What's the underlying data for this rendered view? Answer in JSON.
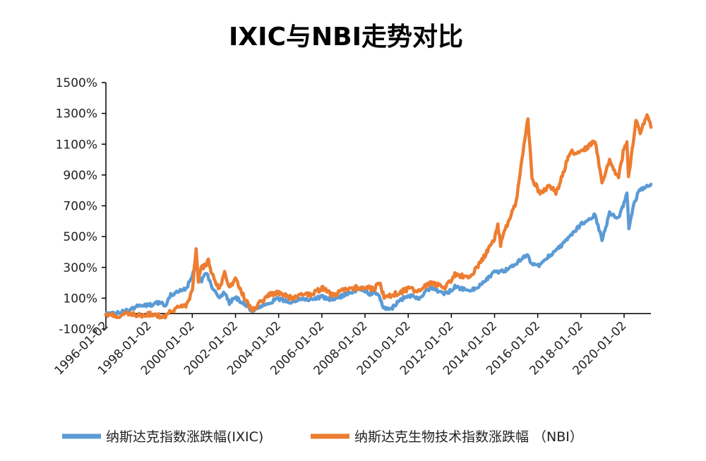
{
  "chart_data": {
    "type": "line",
    "title": "IXIC与NBI走势对比",
    "xlabel": "",
    "ylabel": "",
    "ylim": [
      -100,
      1500
    ],
    "yticks": [
      "-100%",
      "100%",
      "300%",
      "500%",
      "700%",
      "900%",
      "1100%",
      "1300%",
      "1500%"
    ],
    "yticks_values": [
      -100,
      100,
      300,
      500,
      700,
      900,
      1100,
      1300,
      1500
    ],
    "xlim": [
      "1996-01-02",
      "2021-03-31"
    ],
    "xticks": [
      "1996-01-02",
      "1998-01-02",
      "2000-01-02",
      "2002-01-02",
      "2004-01-02",
      "2006-01-02",
      "2008-01-02",
      "2010-01-02",
      "2012-01-02",
      "2014-01-02",
      "2016-01-02",
      "2018-01-02",
      "2020-01-02"
    ],
    "grid": false,
    "legend_position": "bottom",
    "series": [
      {
        "name": "纳斯达克指数涨跌幅(IXIC)",
        "color": "#5B9BD5",
        "points": [
          [
            "1996-01-02",
            0
          ],
          [
            "1996-07-01",
            2
          ],
          [
            "1997-01-02",
            20
          ],
          [
            "1997-07-01",
            50
          ],
          [
            "1998-01-02",
            55
          ],
          [
            "1998-07-01",
            75
          ],
          [
            "1998-10-05",
            45
          ],
          [
            "1999-01-04",
            120
          ],
          [
            "1999-07-01",
            150
          ],
          [
            "1999-10-01",
            170
          ],
          [
            "2000-01-03",
            250
          ],
          [
            "2000-03-10",
            310
          ],
          [
            "2000-05-23",
            200
          ],
          [
            "2000-09-01",
            270
          ],
          [
            "2000-12-01",
            170
          ],
          [
            "2001-04-04",
            105
          ],
          [
            "2001-07-02",
            140
          ],
          [
            "2001-09-21",
            70
          ],
          [
            "2002-01-02",
            105
          ],
          [
            "2002-07-01",
            55
          ],
          [
            "2002-10-09",
            15
          ],
          [
            "2003-01-02",
            35
          ],
          [
            "2003-07-01",
            70
          ],
          [
            "2004-01-02",
            95
          ],
          [
            "2004-08-02",
            75
          ],
          [
            "2005-01-03",
            95
          ],
          [
            "2005-07-01",
            90
          ],
          [
            "2006-01-03",
            110
          ],
          [
            "2006-07-17",
            85
          ],
          [
            "2007-01-02",
            120
          ],
          [
            "2007-10-31",
            165
          ],
          [
            "2008-03-10",
            125
          ],
          [
            "2008-06-02",
            140
          ],
          [
            "2008-09-01",
            110
          ],
          [
            "2008-11-20",
            35
          ],
          [
            "2009-03-09",
            20
          ],
          [
            "2009-07-01",
            75
          ],
          [
            "2010-01-04",
            120
          ],
          [
            "2010-07-01",
            95
          ],
          [
            "2011-01-03",
            165
          ],
          [
            "2011-10-03",
            125
          ],
          [
            "2012-03-01",
            175
          ],
          [
            "2012-11-15",
            145
          ],
          [
            "2013-06-01",
            195
          ],
          [
            "2014-01-02",
            270
          ],
          [
            "2014-07-01",
            280
          ],
          [
            "2015-01-02",
            330
          ],
          [
            "2015-07-20",
            385
          ],
          [
            "2015-08-25",
            330
          ],
          [
            "2016-02-11",
            310
          ],
          [
            "2016-07-01",
            370
          ],
          [
            "2017-01-03",
            430
          ],
          [
            "2017-07-03",
            500
          ],
          [
            "2018-01-02",
            580
          ],
          [
            "2018-08-29",
            640
          ],
          [
            "2018-12-24",
            480
          ],
          [
            "2019-05-01",
            650
          ],
          [
            "2019-10-01",
            620
          ],
          [
            "2020-01-02",
            720
          ],
          [
            "2020-02-19",
            790
          ],
          [
            "2020-03-23",
            560
          ],
          [
            "2020-06-01",
            690
          ],
          [
            "2020-09-01",
            790
          ],
          [
            "2021-01-04",
            830
          ],
          [
            "2021-03-31",
            840
          ]
        ]
      },
      {
        "name": "纳斯达克生物技术指数涨跌幅 （NBI）",
        "color": "#ED7D31",
        "points": [
          [
            "1996-01-02",
            0
          ],
          [
            "1996-07-01",
            -15
          ],
          [
            "1997-01-02",
            -5
          ],
          [
            "1997-07-01",
            -10
          ],
          [
            "1998-01-02",
            -5
          ],
          [
            "1998-10-05",
            -25
          ],
          [
            "1999-01-04",
            20
          ],
          [
            "1999-07-01",
            40
          ],
          [
            "1999-10-01",
            60
          ],
          [
            "2000-01-03",
            150
          ],
          [
            "2000-03-07",
            420
          ],
          [
            "2000-04-14",
            220
          ],
          [
            "2000-06-01",
            290
          ],
          [
            "2000-10-02",
            340
          ],
          [
            "2000-12-01",
            250
          ],
          [
            "2001-04-04",
            160
          ],
          [
            "2001-07-02",
            260
          ],
          [
            "2001-09-21",
            170
          ],
          [
            "2002-01-02",
            220
          ],
          [
            "2002-07-01",
            80
          ],
          [
            "2002-10-09",
            20
          ],
          [
            "2003-01-02",
            50
          ],
          [
            "2003-07-01",
            120
          ],
          [
            "2004-01-02",
            140
          ],
          [
            "2004-08-02",
            100
          ],
          [
            "2005-01-03",
            130
          ],
          [
            "2005-07-01",
            125
          ],
          [
            "2006-01-03",
            165
          ],
          [
            "2006-07-17",
            120
          ],
          [
            "2007-01-02",
            155
          ],
          [
            "2007-10-31",
            170
          ],
          [
            "2008-06-02",
            160
          ],
          [
            "2008-09-01",
            200
          ],
          [
            "2008-11-20",
            110
          ],
          [
            "2009-03-09",
            120
          ],
          [
            "2009-07-01",
            130
          ],
          [
            "2010-01-04",
            160
          ],
          [
            "2010-07-01",
            150
          ],
          [
            "2011-01-03",
            200
          ],
          [
            "2011-10-03",
            170
          ],
          [
            "2012-03-01",
            250
          ],
          [
            "2012-11-15",
            240
          ],
          [
            "2013-06-01",
            350
          ],
          [
            "2014-01-02",
            480
          ],
          [
            "2014-02-25",
            580
          ],
          [
            "2014-04-14",
            450
          ],
          [
            "2014-07-01",
            550
          ],
          [
            "2015-01-02",
            720
          ],
          [
            "2015-07-20",
            1270
          ],
          [
            "2015-09-28",
            880
          ],
          [
            "2016-02-11",
            780
          ],
          [
            "2016-07-01",
            830
          ],
          [
            "2016-11-04",
            790
          ],
          [
            "2017-01-03",
            840
          ],
          [
            "2017-07-03",
            1050
          ],
          [
            "2018-01-02",
            1050
          ],
          [
            "2018-08-29",
            1120
          ],
          [
            "2018-12-24",
            850
          ],
          [
            "2019-05-01",
            1000
          ],
          [
            "2019-10-01",
            880
          ],
          [
            "2020-01-02",
            1080
          ],
          [
            "2020-02-19",
            1100
          ],
          [
            "2020-03-16",
            880
          ],
          [
            "2020-07-20",
            1250
          ],
          [
            "2020-10-01",
            1180
          ],
          [
            "2021-02-08",
            1290
          ],
          [
            "2021-03-31",
            1210
          ]
        ]
      }
    ]
  }
}
